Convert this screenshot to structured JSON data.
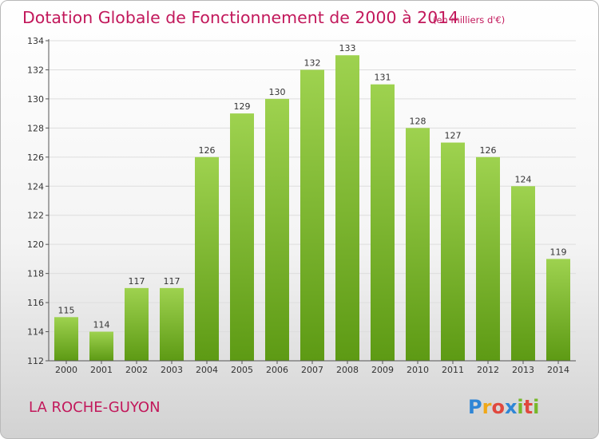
{
  "chart_data": {
    "type": "bar",
    "title": "Dotation Globale de Fonctionnement de 2000 à 2014",
    "unit_note": "(en milliers d'€)",
    "categories": [
      "2000",
      "2001",
      "2002",
      "2003",
      "2004",
      "2005",
      "2006",
      "2007",
      "2008",
      "2009",
      "2010",
      "2011",
      "2012",
      "2013",
      "2014"
    ],
    "values": [
      115,
      114,
      117,
      117,
      126,
      129,
      130,
      132,
      133,
      131,
      128,
      127,
      126,
      124,
      119
    ],
    "ylim": [
      112,
      134
    ],
    "yticks": [
      112,
      114,
      116,
      118,
      120,
      122,
      124,
      126,
      128,
      130,
      132,
      134
    ],
    "grid": true,
    "xlabel": "",
    "ylabel": ""
  },
  "commune": "LA ROCHE-GUYON",
  "logo": {
    "letters": [
      "P",
      "r",
      "o",
      "x",
      "i",
      "t",
      "i"
    ],
    "colors": [
      "#2f86d6",
      "#f0a818",
      "#e0483e",
      "#2f86d6",
      "#77b82a",
      "#e0483e",
      "#77b82a"
    ]
  },
  "colors": {
    "bar_light": "#9ed24f",
    "bar_dark": "#5d9a14",
    "title": "#c2185b",
    "grid": "#dddddd"
  }
}
